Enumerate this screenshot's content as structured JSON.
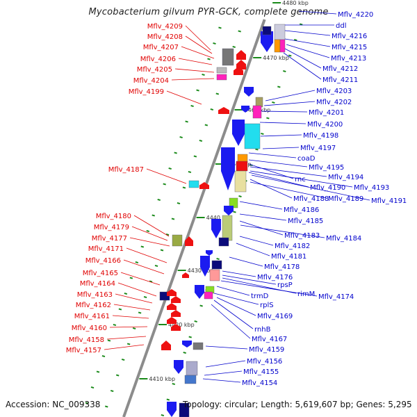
{
  "title": "Mycobacterium gilvum PYR-GCK, complete genome",
  "accession": "Accession: NC_009338",
  "summary": "Topology: circular; Length: 5,619,607 bp; Genes: 5,295",
  "colors": {
    "left_label": "#e00000",
    "right_label": "#0000cc",
    "backbone": "#8c8c8c",
    "tick": "#1a8a1a",
    "gene_red": "#ee1111",
    "gene_blue": "#1b1bf0",
    "gene_navy": "#0b0b7a",
    "gene_cyan": "#22ddee",
    "gene_magenta": "#ff22bb",
    "gene_green": "#88dd22",
    "gene_khaki": "#e8e0a0",
    "gene_gray": "#777777"
  },
  "scale_labels": [
    "4480 kbp",
    "4470 kbp",
    "4460 kbp",
    "4450 kbp",
    "4440 kbp",
    "4430 kbp",
    "4420 kbp",
    "4410 kbp"
  ],
  "left_labels": [
    "Mflv_4209",
    "Mflv_4208",
    "Mflv_4207",
    "Mflv_4206",
    "Mflv_4205",
    "Mflv_4204",
    "Mflv_4199",
    "Mflv_4187",
    "Mflv_4180",
    "Mflv_4179",
    "Mflv_4177",
    "Mflv_4171",
    "Mflv_4166",
    "Mflv_4165",
    "Mflv_4164",
    "Mflv_4163",
    "Mflv_4162",
    "Mflv_4161",
    "Mflv_4160",
    "Mflv_4158",
    "Mflv_4157"
  ],
  "right_labels": [
    "Mflv_4220",
    "ddl",
    "Mflv_4216",
    "Mflv_4215",
    "Mflv_4213",
    "Mflv_4212",
    "Mflv_4211",
    "Mflv_4203",
    "Mflv_4202",
    "Mflv_4201",
    "Mflv_4200",
    "Mflv_4198",
    "Mflv_4197",
    "coaD",
    "Mflv_4195",
    "rnc",
    "Mflv_4194",
    "Mflv_4190",
    "Mflv_4193",
    "Mflv_4188",
    "Mflv_4189",
    "Mflv_4191",
    "Mflv_4186",
    "Mflv_4185",
    "Mflv_4183",
    "Mflv_4184",
    "Mflv_4182",
    "Mflv_4181",
    "Mflv_4178",
    "Mflv_4176",
    "rpsP",
    "rimM",
    "Mflv_4174",
    "trmD",
    "rplS",
    "Mflv_4169",
    "rnhB",
    "Mflv_4167",
    "Mflv_4159",
    "Mflv_4156",
    "Mflv_4155",
    "Mflv_4154"
  ]
}
